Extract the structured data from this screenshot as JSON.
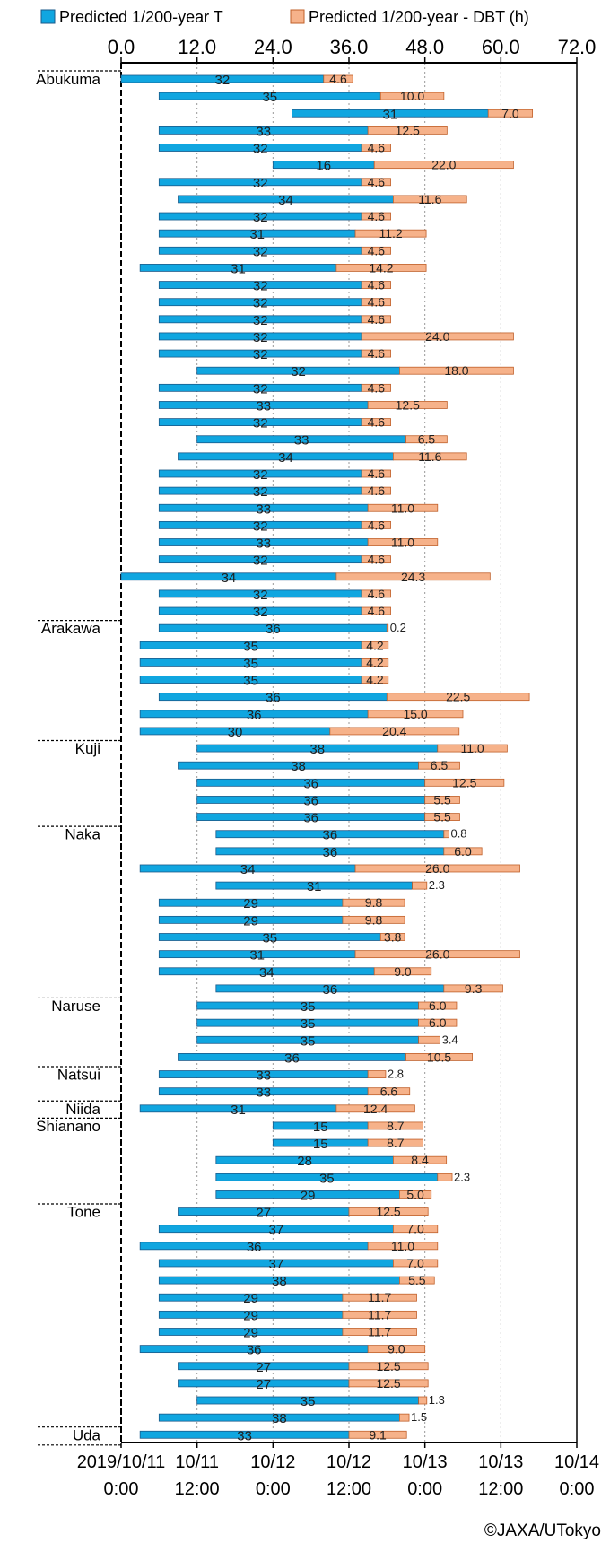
{
  "chart_data": {
    "type": "bar",
    "orientation": "horizontal-stacked",
    "legend": {
      "placement": "top",
      "items": [
        {
          "name": "Predicted 1/200-year T",
          "color": "#10a6e0",
          "stroke": "#1a5a8a"
        },
        {
          "name": "Predicted 1/200-year - DBT (h)",
          "color": "#f6b28a",
          "stroke": "#c0602a"
        }
      ]
    },
    "x_axis_top": {
      "ticks": [
        "0.0",
        "12.0",
        "24.0",
        "36.0",
        "48.0",
        "60.0",
        "72.0"
      ],
      "range": [
        0,
        72
      ]
    },
    "x_axis_bottom": {
      "ticks": [
        {
          "line1": "2019/10/11",
          "line2": "0:00"
        },
        {
          "line1": "10/11",
          "line2": "12:00"
        },
        {
          "line1": "10/12",
          "line2": "0:00"
        },
        {
          "line1": "10/12",
          "line2": "12:00"
        },
        {
          "line1": "10/13",
          "line2": "0:00"
        },
        {
          "line1": "10/13",
          "line2": "12:00"
        },
        {
          "line1": "10/14",
          "line2": "0:00"
        }
      ]
    },
    "grid": "vertical-dotted",
    "groups": [
      {
        "name": "Abukuma",
        "start_row": 0
      },
      {
        "name": "Arakawa",
        "start_row": 32
      },
      {
        "name": "Kuji",
        "start_row": 39
      },
      {
        "name": "Naka",
        "start_row": 44
      },
      {
        "name": "Naruse",
        "start_row": 54
      },
      {
        "name": "Natsui",
        "start_row": 58
      },
      {
        "name": "Niida",
        "start_row": 60
      },
      {
        "name": "Shianano",
        "start_row": 61
      },
      {
        "name": "Tone",
        "start_row": 66
      },
      {
        "name": "Uda",
        "start_row": 79
      }
    ],
    "rows": [
      {
        "start": 0,
        "t": 32,
        "dbt": 4.6
      },
      {
        "start": 6,
        "t": 35,
        "dbt": 10.0
      },
      {
        "start": 27,
        "t": 31,
        "dbt": 7.0
      },
      {
        "start": 6,
        "t": 33,
        "dbt": 12.5
      },
      {
        "start": 6,
        "t": 32,
        "dbt": 4.6
      },
      {
        "start": 24,
        "t": 16,
        "dbt": 22.0
      },
      {
        "start": 6,
        "t": 32,
        "dbt": 4.6
      },
      {
        "start": 9,
        "t": 34,
        "dbt": 11.6
      },
      {
        "start": 6,
        "t": 32,
        "dbt": 4.6
      },
      {
        "start": 6,
        "t": 31,
        "dbt": 11.2
      },
      {
        "start": 6,
        "t": 32,
        "dbt": 4.6
      },
      {
        "start": 3,
        "t": 31,
        "dbt": 14.2
      },
      {
        "start": 6,
        "t": 32,
        "dbt": 4.6
      },
      {
        "start": 6,
        "t": 32,
        "dbt": 4.6
      },
      {
        "start": 6,
        "t": 32,
        "dbt": 4.6
      },
      {
        "start": 6,
        "t": 32,
        "dbt": 24.0
      },
      {
        "start": 6,
        "t": 32,
        "dbt": 4.6
      },
      {
        "start": 12,
        "t": 32,
        "dbt": 18.0
      },
      {
        "start": 6,
        "t": 32,
        "dbt": 4.6
      },
      {
        "start": 6,
        "t": 33,
        "dbt": 12.5
      },
      {
        "start": 6,
        "t": 32,
        "dbt": 4.6
      },
      {
        "start": 12,
        "t": 33,
        "dbt": 6.5
      },
      {
        "start": 9,
        "t": 34,
        "dbt": 11.6
      },
      {
        "start": 6,
        "t": 32,
        "dbt": 4.6
      },
      {
        "start": 6,
        "t": 32,
        "dbt": 4.6
      },
      {
        "start": 6,
        "t": 33,
        "dbt": 11.0
      },
      {
        "start": 6,
        "t": 32,
        "dbt": 4.6
      },
      {
        "start": 6,
        "t": 33,
        "dbt": 11.0
      },
      {
        "start": 6,
        "t": 32,
        "dbt": 4.6
      },
      {
        "start": 0,
        "t": 34,
        "dbt": 24.3
      },
      {
        "start": 6,
        "t": 32,
        "dbt": 4.6
      },
      {
        "start": 6,
        "t": 32,
        "dbt": 4.6
      },
      {
        "start": 6,
        "t": 36,
        "dbt": 0.2
      },
      {
        "start": 3,
        "t": 35,
        "dbt": 4.2
      },
      {
        "start": 3,
        "t": 35,
        "dbt": 4.2
      },
      {
        "start": 3,
        "t": 35,
        "dbt": 4.2
      },
      {
        "start": 6,
        "t": 36,
        "dbt": 22.5
      },
      {
        "start": 3,
        "t": 36,
        "dbt": 15.0
      },
      {
        "start": 3,
        "t": 30,
        "dbt": 20.4
      },
      {
        "start": 12,
        "t": 38,
        "dbt": 11.0
      },
      {
        "start": 9,
        "t": 38,
        "dbt": 6.5
      },
      {
        "start": 12,
        "t": 36,
        "dbt": 12.5
      },
      {
        "start": 12,
        "t": 36,
        "dbt": 5.5
      },
      {
        "start": 12,
        "t": 36,
        "dbt": 5.5
      },
      {
        "start": 15,
        "t": 36,
        "dbt": 0.8
      },
      {
        "start": 15,
        "t": 36,
        "dbt": 6.0
      },
      {
        "start": 3,
        "t": 34,
        "dbt": 26.0
      },
      {
        "start": 15,
        "t": 31,
        "dbt": 2.3
      },
      {
        "start": 6,
        "t": 29,
        "dbt": 9.8
      },
      {
        "start": 6,
        "t": 29,
        "dbt": 9.8
      },
      {
        "start": 6,
        "t": 35,
        "dbt": 3.8
      },
      {
        "start": 6,
        "t": 31,
        "dbt": 26.0
      },
      {
        "start": 6,
        "t": 34,
        "dbt": 9.0
      },
      {
        "start": 15,
        "t": 36,
        "dbt": 9.3
      },
      {
        "start": 12,
        "t": 35,
        "dbt": 6.0
      },
      {
        "start": 12,
        "t": 35,
        "dbt": 6.0
      },
      {
        "start": 12,
        "t": 35,
        "dbt": 3.4
      },
      {
        "start": 9,
        "t": 36,
        "dbt": 10.5
      },
      {
        "start": 6,
        "t": 33,
        "dbt": 2.8
      },
      {
        "start": 6,
        "t": 33,
        "dbt": 6.6
      },
      {
        "start": 3,
        "t": 31,
        "dbt": 12.4
      },
      {
        "start": 24,
        "t": 15,
        "dbt": 8.7
      },
      {
        "start": 24,
        "t": 15,
        "dbt": 8.7
      },
      {
        "start": 15,
        "t": 28,
        "dbt": 8.4
      },
      {
        "start": 15,
        "t": 35,
        "dbt": 2.3
      },
      {
        "start": 15,
        "t": 29,
        "dbt": 5.0
      },
      {
        "start": 9,
        "t": 27,
        "dbt": 12.5
      },
      {
        "start": 6,
        "t": 37,
        "dbt": 7.0
      },
      {
        "start": 3,
        "t": 36,
        "dbt": 11.0
      },
      {
        "start": 6,
        "t": 37,
        "dbt": 7.0
      },
      {
        "start": 6,
        "t": 38,
        "dbt": 5.5
      },
      {
        "start": 6,
        "t": 29,
        "dbt": 11.7
      },
      {
        "start": 6,
        "t": 29,
        "dbt": 11.7
      },
      {
        "start": 6,
        "t": 29,
        "dbt": 11.7
      },
      {
        "start": 3,
        "t": 36,
        "dbt": 9.0
      },
      {
        "start": 9,
        "t": 27,
        "dbt": 12.5
      },
      {
        "start": 9,
        "t": 27,
        "dbt": 12.5
      },
      {
        "start": 12,
        "t": 35,
        "dbt": 1.3
      },
      {
        "start": 6,
        "t": 38,
        "dbt": 1.5
      },
      {
        "start": 3,
        "t": 33,
        "dbt": 9.1
      }
    ]
  },
  "copyright": "©JAXA/UTokyo"
}
